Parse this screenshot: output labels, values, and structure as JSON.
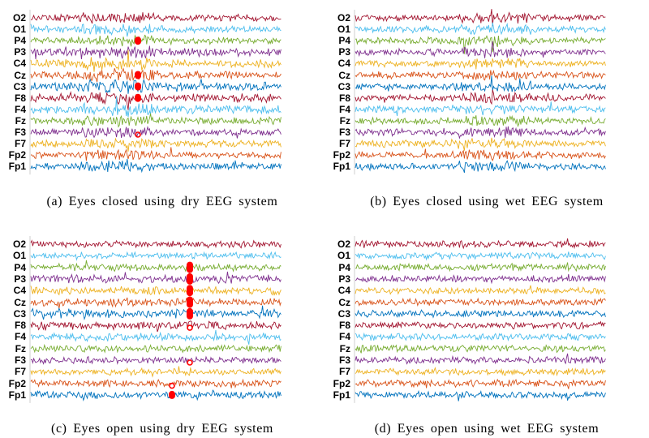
{
  "chart_data": [
    {
      "type": "line",
      "id": "a",
      "caption": "(a)  Eyes  closed  using  dry  EEG  system",
      "channels": [
        "O2",
        "O1",
        "P4",
        "P3",
        "C4",
        "Cz",
        "C3",
        "F8",
        "F4",
        "Fz",
        "F3",
        "F7",
        "Fp2",
        "Fp1"
      ],
      "eye_open": false,
      "artifact": "dry",
      "marker_channels_filled": [
        "P4",
        "Cz",
        "C3",
        "F8"
      ],
      "marker_channels_hollow": [
        "F3"
      ]
    },
    {
      "type": "line",
      "id": "b",
      "caption": "(b)  Eyes  closed  using  wet  EEG  system",
      "channels": [
        "O2",
        "O1",
        "P4",
        "P3",
        "C4",
        "Cz",
        "C3",
        "F8",
        "F4",
        "Fz",
        "F3",
        "F7",
        "Fp2",
        "Fp1"
      ],
      "eye_open": false,
      "artifact": "wet",
      "marker_channels_filled": [],
      "marker_channels_hollow": []
    },
    {
      "type": "line",
      "id": "c",
      "caption": "(c)  Eyes  open  using  dry  EEG  system",
      "channels": [
        "O2",
        "O1",
        "P4",
        "P3",
        "C4",
        "Cz",
        "C3",
        "F8",
        "F4",
        "Fz",
        "F3",
        "F7",
        "Fp2",
        "Fp1"
      ],
      "eye_open": true,
      "artifact": "dry",
      "marker_channels_filled": [
        "P4",
        "P3",
        "C4",
        "Cz",
        "C3",
        "Fp1"
      ],
      "marker_channels_hollow": [
        "F8",
        "F3",
        "Fp2"
      ]
    },
    {
      "type": "line",
      "id": "d",
      "caption": "(d)  Eyes  open  using  wet  EEG  system",
      "channels": [
        "O2",
        "O1",
        "P4",
        "P3",
        "C4",
        "Cz",
        "C3",
        "F8",
        "F4",
        "Fz",
        "F3",
        "F7",
        "Fp2",
        "Fp1"
      ],
      "eye_open": true,
      "artifact": "wet",
      "marker_channels_filled": [],
      "marker_channels_hollow": []
    }
  ],
  "colors": {
    "O2": "#A2142F",
    "O1": "#4DBEEE",
    "P4": "#77AC30",
    "P3": "#7E2F8E",
    "C4": "#EDB120",
    "Cz": "#D95319",
    "C3": "#0072BD",
    "F8": "#A2142F",
    "F4": "#4DBEEE",
    "Fz": "#77AC30",
    "F3": "#7E2F8E",
    "F7": "#EDB120",
    "Fp2": "#D95319",
    "Fp1": "#0072BD",
    "marker": "#FF0000"
  }
}
